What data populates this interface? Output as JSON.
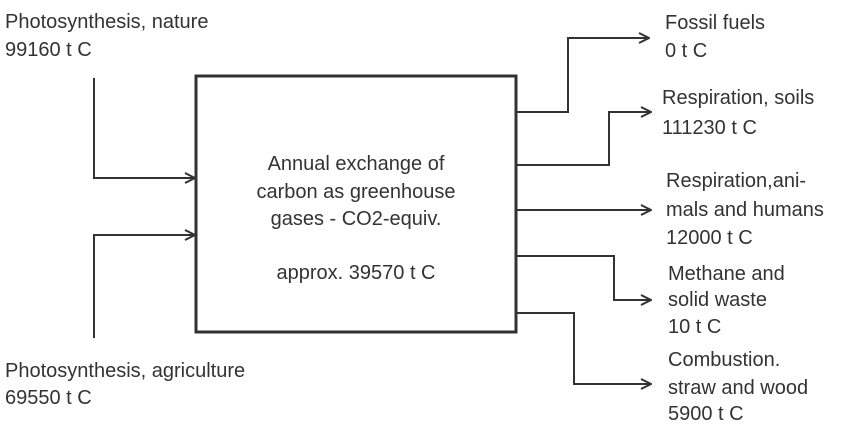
{
  "box": {
    "lines": [
      "Annual exchange of",
      "carbon as greenhouse",
      "gases - CO2-equiv."
    ],
    "total": "approx. 39570 t C"
  },
  "inputs": [
    {
      "lines": [
        "Photosynthesis, nature",
        "99160 t C"
      ]
    },
    {
      "lines": [
        "Photosynthesis, agriculture",
        "69550 t C"
      ]
    }
  ],
  "outputs": [
    {
      "lines": [
        "Fossil fuels",
        "0 t C"
      ]
    },
    {
      "lines": [
        "Respiration, soils",
        "111230 t C"
      ]
    },
    {
      "lines": [
        "Respiration,ani-",
        "mals and humans",
        "12000 t C"
      ]
    },
    {
      "lines": [
        "Methane and",
        "solid waste",
        "10 t C"
      ]
    },
    {
      "lines": [
        "Combustion.",
        "straw and wood",
        "5900 t C"
      ]
    }
  ]
}
